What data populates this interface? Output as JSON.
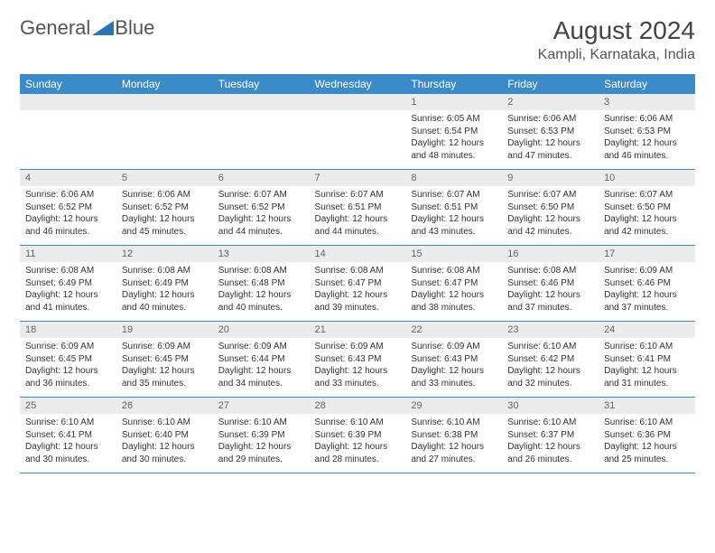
{
  "logo": {
    "text1": "General",
    "text2": "Blue"
  },
  "title": "August 2024",
  "location": "Kampli, Karnataka, India",
  "colors": {
    "header_bg": "#3b8bc9",
    "header_text": "#ffffff",
    "daynum_bg": "#ececec",
    "border": "#3b8bc9",
    "logo_accent": "#2a74b8"
  },
  "weekdays": [
    "Sunday",
    "Monday",
    "Tuesday",
    "Wednesday",
    "Thursday",
    "Friday",
    "Saturday"
  ],
  "weeks": [
    [
      {
        "empty": true
      },
      {
        "empty": true
      },
      {
        "empty": true
      },
      {
        "empty": true
      },
      {
        "d": "1",
        "sr": "6:05 AM",
        "ss": "6:54 PM",
        "dl": "12 hours and 48 minutes."
      },
      {
        "d": "2",
        "sr": "6:06 AM",
        "ss": "6:53 PM",
        "dl": "12 hours and 47 minutes."
      },
      {
        "d": "3",
        "sr": "6:06 AM",
        "ss": "6:53 PM",
        "dl": "12 hours and 46 minutes."
      }
    ],
    [
      {
        "d": "4",
        "sr": "6:06 AM",
        "ss": "6:52 PM",
        "dl": "12 hours and 46 minutes."
      },
      {
        "d": "5",
        "sr": "6:06 AM",
        "ss": "6:52 PM",
        "dl": "12 hours and 45 minutes."
      },
      {
        "d": "6",
        "sr": "6:07 AM",
        "ss": "6:52 PM",
        "dl": "12 hours and 44 minutes."
      },
      {
        "d": "7",
        "sr": "6:07 AM",
        "ss": "6:51 PM",
        "dl": "12 hours and 44 minutes."
      },
      {
        "d": "8",
        "sr": "6:07 AM",
        "ss": "6:51 PM",
        "dl": "12 hours and 43 minutes."
      },
      {
        "d": "9",
        "sr": "6:07 AM",
        "ss": "6:50 PM",
        "dl": "12 hours and 42 minutes."
      },
      {
        "d": "10",
        "sr": "6:07 AM",
        "ss": "6:50 PM",
        "dl": "12 hours and 42 minutes."
      }
    ],
    [
      {
        "d": "11",
        "sr": "6:08 AM",
        "ss": "6:49 PM",
        "dl": "12 hours and 41 minutes."
      },
      {
        "d": "12",
        "sr": "6:08 AM",
        "ss": "6:49 PM",
        "dl": "12 hours and 40 minutes."
      },
      {
        "d": "13",
        "sr": "6:08 AM",
        "ss": "6:48 PM",
        "dl": "12 hours and 40 minutes."
      },
      {
        "d": "14",
        "sr": "6:08 AM",
        "ss": "6:47 PM",
        "dl": "12 hours and 39 minutes."
      },
      {
        "d": "15",
        "sr": "6:08 AM",
        "ss": "6:47 PM",
        "dl": "12 hours and 38 minutes."
      },
      {
        "d": "16",
        "sr": "6:08 AM",
        "ss": "6:46 PM",
        "dl": "12 hours and 37 minutes."
      },
      {
        "d": "17",
        "sr": "6:09 AM",
        "ss": "6:46 PM",
        "dl": "12 hours and 37 minutes."
      }
    ],
    [
      {
        "d": "18",
        "sr": "6:09 AM",
        "ss": "6:45 PM",
        "dl": "12 hours and 36 minutes."
      },
      {
        "d": "19",
        "sr": "6:09 AM",
        "ss": "6:45 PM",
        "dl": "12 hours and 35 minutes."
      },
      {
        "d": "20",
        "sr": "6:09 AM",
        "ss": "6:44 PM",
        "dl": "12 hours and 34 minutes."
      },
      {
        "d": "21",
        "sr": "6:09 AM",
        "ss": "6:43 PM",
        "dl": "12 hours and 33 minutes."
      },
      {
        "d": "22",
        "sr": "6:09 AM",
        "ss": "6:43 PM",
        "dl": "12 hours and 33 minutes."
      },
      {
        "d": "23",
        "sr": "6:10 AM",
        "ss": "6:42 PM",
        "dl": "12 hours and 32 minutes."
      },
      {
        "d": "24",
        "sr": "6:10 AM",
        "ss": "6:41 PM",
        "dl": "12 hours and 31 minutes."
      }
    ],
    [
      {
        "d": "25",
        "sr": "6:10 AM",
        "ss": "6:41 PM",
        "dl": "12 hours and 30 minutes."
      },
      {
        "d": "26",
        "sr": "6:10 AM",
        "ss": "6:40 PM",
        "dl": "12 hours and 30 minutes."
      },
      {
        "d": "27",
        "sr": "6:10 AM",
        "ss": "6:39 PM",
        "dl": "12 hours and 29 minutes."
      },
      {
        "d": "28",
        "sr": "6:10 AM",
        "ss": "6:39 PM",
        "dl": "12 hours and 28 minutes."
      },
      {
        "d": "29",
        "sr": "6:10 AM",
        "ss": "6:38 PM",
        "dl": "12 hours and 27 minutes."
      },
      {
        "d": "30",
        "sr": "6:10 AM",
        "ss": "6:37 PM",
        "dl": "12 hours and 26 minutes."
      },
      {
        "d": "31",
        "sr": "6:10 AM",
        "ss": "6:36 PM",
        "dl": "12 hours and 25 minutes."
      }
    ]
  ],
  "labels": {
    "sunrise": "Sunrise:",
    "sunset": "Sunset:",
    "daylight": "Daylight:"
  }
}
